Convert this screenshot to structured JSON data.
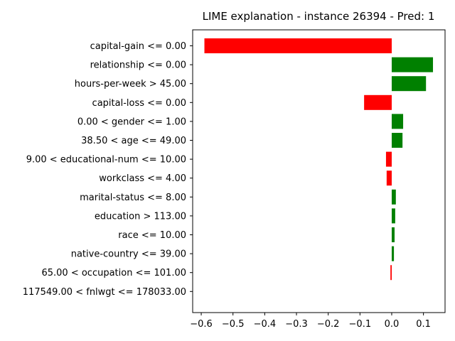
{
  "chart_data": {
    "type": "bar",
    "orientation": "horizontal",
    "title": "LIME explanation - instance 26394 - Pred: 1",
    "xlabel": "",
    "ylabel": "",
    "xlim": [
      -0.627,
      0.168
    ],
    "xticks": [
      -0.6,
      -0.5,
      -0.4,
      -0.3,
      -0.2,
      -0.1,
      0.0,
      0.1
    ],
    "xtick_labels": [
      "−0.6",
      "−0.5",
      "−0.4",
      "−0.3",
      "−0.2",
      "−0.1",
      "0.0",
      "0.1"
    ],
    "grid": false,
    "colors": {
      "positive": "#008000",
      "negative": "#ff0000"
    },
    "categories": [
      "capital-gain <= 0.00",
      "relationship <= 0.00",
      "hours-per-week > 45.00",
      "capital-loss <= 0.00",
      "0.00 < gender <= 1.00",
      "38.50 < age <= 49.00",
      "9.00 < educational-num <= 10.00",
      "workclass <= 4.00",
      "marital-status <= 8.00",
      "education > 113.00",
      "race <= 10.00",
      "native-country <= 39.00",
      "65.00 < occupation <= 101.00",
      "117549.00 < fnlwgt <= 178033.00"
    ],
    "values": [
      -0.59,
      0.13,
      0.108,
      -0.087,
      0.036,
      0.034,
      -0.018,
      -0.016,
      0.013,
      0.011,
      0.009,
      0.007,
      -0.004,
      0.0
    ]
  }
}
